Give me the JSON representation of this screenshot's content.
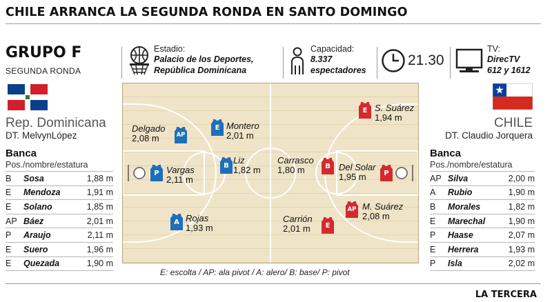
{
  "headline": "CHILE ARRANCA LA SEGUNDA RONDA EN SANTO DOMINGO",
  "group": {
    "title": "GRUPO F",
    "subtitle": "SEGUNDA RONDA"
  },
  "info": {
    "stadium_label": "Estadio:",
    "stadium_line1": "Palacio de los Deportes,",
    "stadium_line2": "República Dominicana",
    "capacity_label": "Capacidad:",
    "capacity_line1": "8.337",
    "capacity_line2": "espectadores",
    "time": "21.30",
    "tv_label": "TV:",
    "tv_line1": "DirecTV",
    "tv_line2": "612 y 1612"
  },
  "teams": {
    "home": {
      "name": "Rep. Dominicana",
      "coach": "DT. MelvynLópez",
      "color": "#1f6fb8",
      "bench_title": "Banca",
      "bench_sub": "Pos./nombre/estatura",
      "bench": [
        {
          "pos": "B",
          "name": "Sosa",
          "height": "1,88 m"
        },
        {
          "pos": "E",
          "name": "Mendoza",
          "height": "1,91 m"
        },
        {
          "pos": "E",
          "name": "Solano",
          "height": "1,85 m"
        },
        {
          "pos": "AP",
          "name": "Báez",
          "height": "2,01 m"
        },
        {
          "pos": "P",
          "name": "Araujo",
          "height": "2,11 m"
        },
        {
          "pos": "E",
          "name": "Suero",
          "height": "1,96 m"
        },
        {
          "pos": "E",
          "name": "Quezada",
          "height": "1,90 m"
        }
      ],
      "starters": [
        {
          "pos": "AP",
          "name": "Delgado",
          "height": "2,08 m"
        },
        {
          "pos": "E",
          "name": "Montero",
          "height": "2,01 m"
        },
        {
          "pos": "P",
          "name": "Vargas",
          "height": "2,11 m"
        },
        {
          "pos": "B",
          "name": "Liz",
          "height": "1,82 m"
        },
        {
          "pos": "A",
          "name": "Rojas",
          "height": "1,93 m"
        }
      ]
    },
    "away": {
      "name": "CHILE",
      "coach": "DT. Claudio Jorquera",
      "color": "#d42a2f",
      "bench_title": "Banca",
      "bench_sub": "Pos./nombre/estatura",
      "bench": [
        {
          "pos": "AP",
          "name": "Silva",
          "height": "2,00 m"
        },
        {
          "pos": "A",
          "name": "Rubio",
          "height": "1,90 m"
        },
        {
          "pos": "B",
          "name": "Morales",
          "height": "1,82 m"
        },
        {
          "pos": "E",
          "name": "Marechal",
          "height": "1,90 m"
        },
        {
          "pos": "P",
          "name": "Haase",
          "height": "2,07 m"
        },
        {
          "pos": "E",
          "name": "Herrera",
          "height": "1,93 m"
        },
        {
          "pos": "P",
          "name": "Isla",
          "height": "2,02 m"
        }
      ],
      "starters": [
        {
          "pos": "E",
          "name": "S. Suárez",
          "height": "1,94 m"
        },
        {
          "pos": "B",
          "name": "Carrasco",
          "height": "1,80 m"
        },
        {
          "pos": "P",
          "name": "Del Solar",
          "height": "1,95 m"
        },
        {
          "pos": "AP",
          "name": "M. Suárez",
          "height": "2,08 m"
        },
        {
          "pos": "E",
          "name": "Carrión",
          "height": "2,01 m"
        }
      ]
    }
  },
  "legend": "E: escolta / AP: ala pivot / A: alero/ B: base/ P: pivot",
  "brand": "LA TERCERA"
}
